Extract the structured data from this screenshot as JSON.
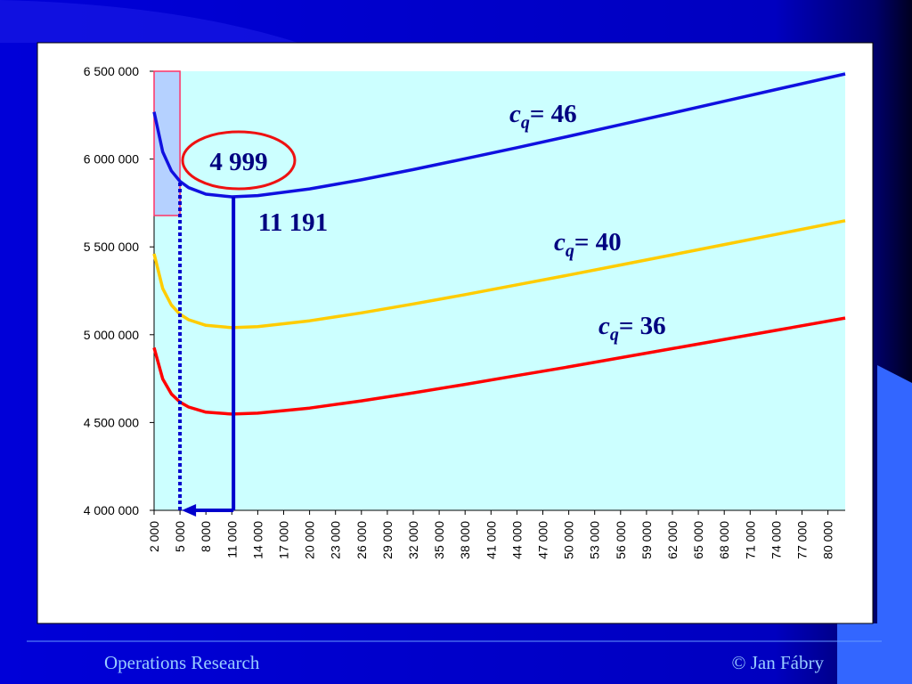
{
  "chart_data": {
    "type": "line",
    "x": [
      2000,
      3000,
      4000,
      5000,
      6000,
      8000,
      11000,
      14000,
      20000,
      26000,
      32000,
      38000,
      44000,
      50000,
      56000,
      62000,
      68000,
      74000,
      82000
    ],
    "series": [
      {
        "label_symbol": "c",
        "label_subscript": "q",
        "label_value": "= 46",
        "color": "#1010e0",
        "values": [
          6269000,
          6041000,
          5933000,
          5873000,
          5837000,
          5800000,
          5785000,
          5792000,
          5830000,
          5882000,
          5940000,
          6002000,
          6065000,
          6130000,
          6196000,
          6262000,
          6329000,
          6396000,
          6485000
        ]
      },
      {
        "label_symbol": "c",
        "label_subscript": "q",
        "label_value": "= 40",
        "color": "#ffcc00",
        "values": [
          5461000,
          5263000,
          5169000,
          5116000,
          5085000,
          5053000,
          5040000,
          5046000,
          5079000,
          5124000,
          5175000,
          5228000,
          5284000,
          5340000,
          5397000,
          5455000,
          5513000,
          5571000,
          5649000
        ]
      },
      {
        "label_symbol": "c",
        "label_subscript": "q",
        "label_value": "= 36",
        "color": "#ff0000",
        "values": [
          4926000,
          4748000,
          4663000,
          4616000,
          4588000,
          4559000,
          4548000,
          4553000,
          4582000,
          4623000,
          4669000,
          4717000,
          4767000,
          4817000,
          4869000,
          4921000,
          4973000,
          5025000,
          5095000
        ]
      }
    ],
    "xlim": [
      2000,
      82000
    ],
    "ylim": [
      4000000,
      6500000
    ],
    "xticks": [
      {
        "value": 2000,
        "label": "2 000"
      },
      {
        "value": 5000,
        "label": "5 000"
      },
      {
        "value": 8000,
        "label": "8 000"
      },
      {
        "value": 11000,
        "label": "11 000"
      },
      {
        "value": 14000,
        "label": "14 000"
      },
      {
        "value": 17000,
        "label": "17 000"
      },
      {
        "value": 20000,
        "label": "20 000"
      },
      {
        "value": 23000,
        "label": "23 000"
      },
      {
        "value": 26000,
        "label": "26 000"
      },
      {
        "value": 29000,
        "label": "29 000"
      },
      {
        "value": 32000,
        "label": "32 000"
      },
      {
        "value": 35000,
        "label": "35 000"
      },
      {
        "value": 38000,
        "label": "38 000"
      },
      {
        "value": 41000,
        "label": "41 000"
      },
      {
        "value": 44000,
        "label": "44 000"
      },
      {
        "value": 47000,
        "label": "47 000"
      },
      {
        "value": 50000,
        "label": "50 000"
      },
      {
        "value": 53000,
        "label": "53 000"
      },
      {
        "value": 56000,
        "label": "56 000"
      },
      {
        "value": 59000,
        "label": "59 000"
      },
      {
        "value": 62000,
        "label": "62 000"
      },
      {
        "value": 65000,
        "label": "65 000"
      },
      {
        "value": 68000,
        "label": "68 000"
      },
      {
        "value": 71000,
        "label": "71 000"
      },
      {
        "value": 74000,
        "label": "74 000"
      },
      {
        "value": 77000,
        "label": "77 000"
      },
      {
        "value": 80000,
        "label": "80 000"
      }
    ],
    "yticks": [
      {
        "value": 4000000,
        "label": "4 000 000"
      },
      {
        "value": 4500000,
        "label": "4 500 000"
      },
      {
        "value": 5000000,
        "label": "5 000 000"
      },
      {
        "value": 5500000,
        "label": "5 500 000"
      },
      {
        "value": 6000000,
        "label": "6 000 000"
      },
      {
        "value": 6500000,
        "label": "6 500 000"
      }
    ],
    "annotations": [
      {
        "value": 4999,
        "label": "4 999"
      },
      {
        "value": 11191,
        "label": "11 191"
      }
    ]
  },
  "footer": {
    "left": "Operations Research",
    "right": "© Jan Fábry"
  }
}
